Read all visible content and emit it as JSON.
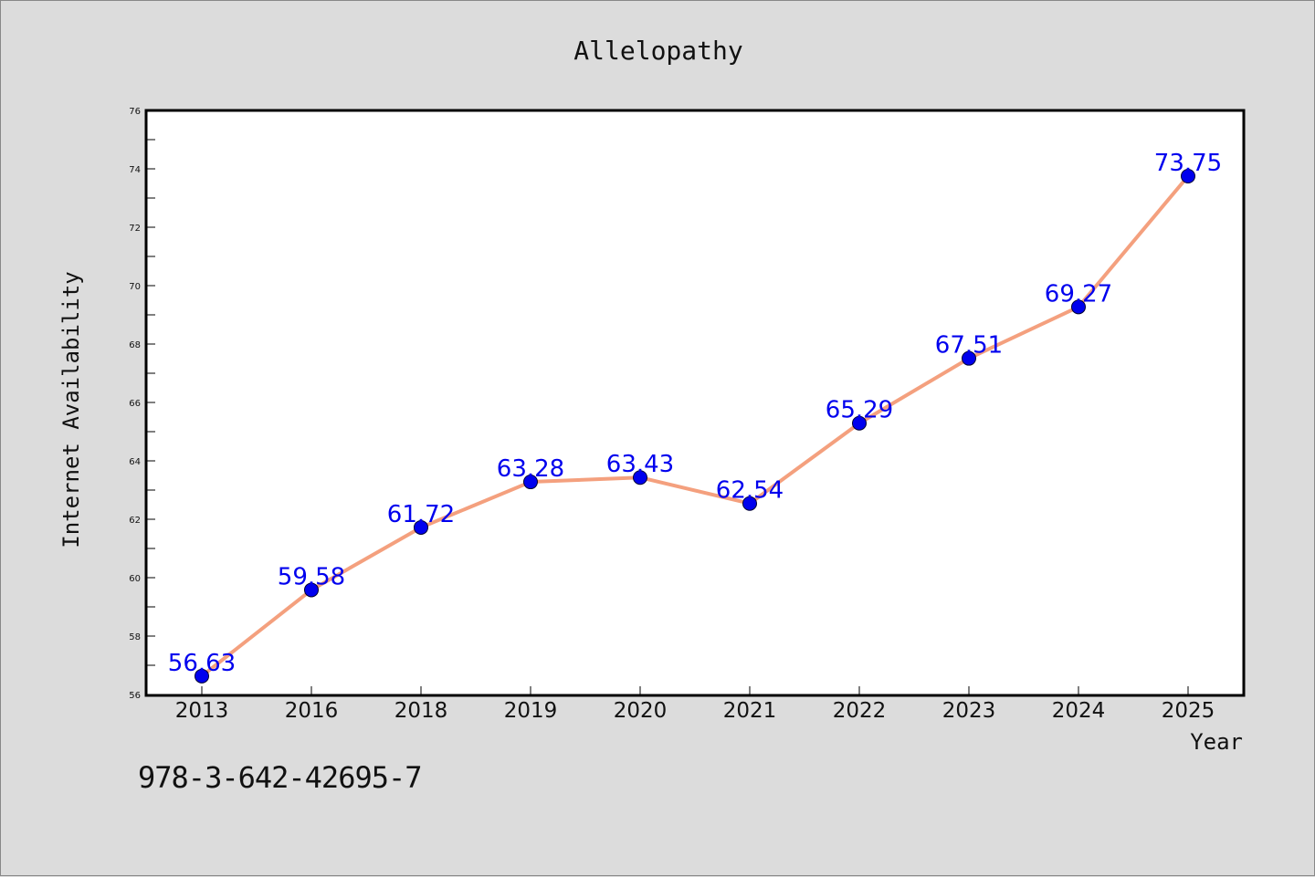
{
  "chart_data": {
    "type": "line",
    "title": "Allelopathy",
    "xlabel": "Year",
    "ylabel": "Internet Availability",
    "categories": [
      "2013",
      "2016",
      "2018",
      "2019",
      "2020",
      "2021",
      "2022",
      "2023",
      "2024",
      "2025"
    ],
    "series": [
      {
        "values": [
          56.63,
          59.58,
          61.72,
          63.28,
          63.43,
          62.54,
          65.29,
          67.51,
          69.27,
          73.75
        ],
        "data_labels": [
          "56.63",
          "59.58",
          "61.72",
          "63.28",
          "63.43",
          "62.54",
          "65.29",
          "67.51",
          "69.27",
          "73.75"
        ]
      }
    ],
    "ylim": [
      56,
      76
    ],
    "yticks": [
      "56",
      "58",
      "60",
      "62",
      "64",
      "66",
      "68",
      "70",
      "72",
      "74",
      "76"
    ],
    "grid": false,
    "legend": "none",
    "colors": {
      "line": "#f4a07e",
      "marker": "#0000ee",
      "label": "#0000ee",
      "plot_bg": "#ffffff",
      "page_bg": "#dcdcdc"
    }
  },
  "footer": {
    "code": "978-3-642-42695-7"
  }
}
